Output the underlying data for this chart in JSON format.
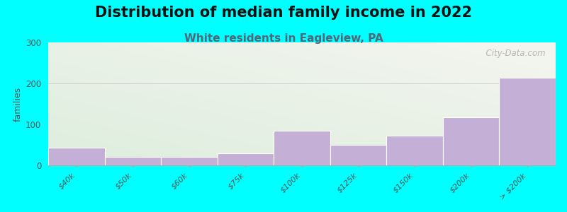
{
  "title": "Distribution of median family income in 2022",
  "subtitle": "White residents in Eagleview, PA",
  "categories": [
    "$40k",
    "$50k",
    "$60k",
    "$75k",
    "$100k",
    "$125k",
    "$150k",
    "$200k",
    "> $200k"
  ],
  "values": [
    43,
    20,
    20,
    30,
    85,
    50,
    73,
    118,
    213
  ],
  "bar_color": "#c4afd6",
  "bar_edgecolor": "#ffffff",
  "background_color": "#00ffff",
  "plot_bg_top_color": "#f0eff5",
  "plot_bg_bottom_color": "#ddeedd",
  "ylabel": "families",
  "ylim": [
    0,
    300
  ],
  "yticks": [
    0,
    100,
    200,
    300
  ],
  "watermark": "  City-Data.com",
  "title_fontsize": 15,
  "subtitle_fontsize": 11,
  "subtitle_color": "#556677"
}
